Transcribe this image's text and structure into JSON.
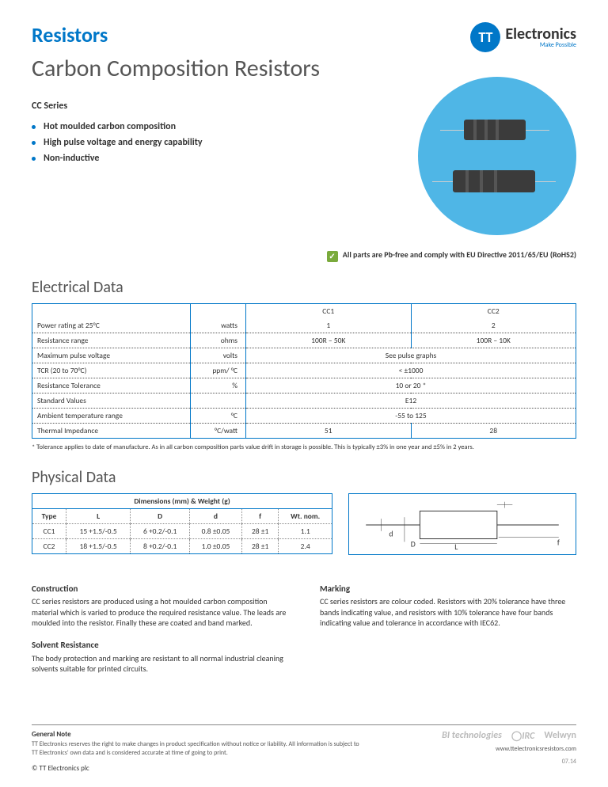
{
  "header": {
    "category": "Resistors",
    "title": "Carbon Composition Resistors",
    "logo_initials": "TT",
    "logo_brand": "Electronics",
    "logo_tagline": "Make Possible"
  },
  "hero": {
    "series": "CC Series",
    "bullets": [
      "Hot moulded carbon composition",
      "High pulse voltage and energy capability",
      "Non-inductive"
    ],
    "circle_color": "#4fb6e6"
  },
  "rohs": {
    "text": "All parts are Pb-free and comply with EU Directive 2011/65/EU (RoHS2)",
    "icon": "✓"
  },
  "electrical": {
    "title": "Electrical Data",
    "cols": [
      "CC1",
      "CC2"
    ],
    "rows": [
      {
        "param": "Power rating at 25°C",
        "unit": "watts",
        "vals": [
          "1",
          "2"
        ]
      },
      {
        "param": "Resistance range",
        "unit": "ohms",
        "vals": [
          "100R – 50K",
          "100R – 10K"
        ]
      },
      {
        "param": "Maximum pulse voltage",
        "unit": "volts",
        "span": "See pulse graphs"
      },
      {
        "param": "TCR (20 to 70°C)",
        "unit": "ppm/ °C",
        "span": "< ±1000"
      },
      {
        "param": "Resistance Tolerance",
        "unit": "%",
        "span": "10 or 20 *"
      },
      {
        "param": "Standard Values",
        "unit": "",
        "span": "E12"
      },
      {
        "param": "Ambient temperature range",
        "unit": "°C",
        "span": "-55 to 125"
      },
      {
        "param": "Thermal Impedance",
        "unit": "°C/watt",
        "vals": [
          "51",
          "28"
        ]
      }
    ],
    "footnote": "* Tolerance applies to date of manufacture. As in all carbon composition parts value drift in storage is possible. This is typically ±3% in one year and ±5% in 2 years."
  },
  "physical": {
    "title": "Physical Data",
    "dim_header": "Dimensions (mm) & Weight (g)",
    "cols": [
      "Type",
      "L",
      "D",
      "d",
      "f",
      "Wt. nom."
    ],
    "rows": [
      [
        "CC1",
        "15 +1.5/-0.5",
        "6 +0.2/-0.1",
        "0.8 ±0.05",
        "28 ±1",
        "1.1"
      ],
      [
        "CC2",
        "18 +1.5/-0.5",
        "8 +0.2/-0.1",
        "1.0 ±0.05",
        "28 ±1",
        "2.4"
      ]
    ],
    "diagram_labels": {
      "d": "d",
      "D": "D",
      "L": "L",
      "f": "f"
    }
  },
  "body_sections": {
    "left": [
      {
        "h": "Construction",
        "p": "CC series resistors are produced using a hot moulded carbon composition material which is varied to produce the required resistance value. The leads are moulded into the resistor. Finally these are coated and band marked."
      },
      {
        "h": "Solvent Resistance",
        "p": "The body protection and marking are resistant to all normal industrial cleaning solvents suitable for printed circuits."
      }
    ],
    "right": [
      {
        "h": "Marking",
        "p": "CC series resistors are colour coded. Resistors with 20% tolerance have three bands indicating value, and resistors with 10% tolerance have four bands indicating value and tolerance in accordance with IEC62."
      }
    ]
  },
  "footer": {
    "general_note_h": "General Note",
    "general_note": "TT Electronics reserves the right to make changes in product specification without notice or liability. All information is subject to TT Electronics' own data and is considered accurate at time of going to print.",
    "brands": [
      "BI technologies",
      "IRC",
      "Welwyn"
    ],
    "url": "www.ttelectronicsresistors.com",
    "copyright": "© TT Electronics plc",
    "date": "07.14"
  },
  "colors": {
    "accent": "#0077c8",
    "text": "#333333",
    "muted": "#555555"
  }
}
